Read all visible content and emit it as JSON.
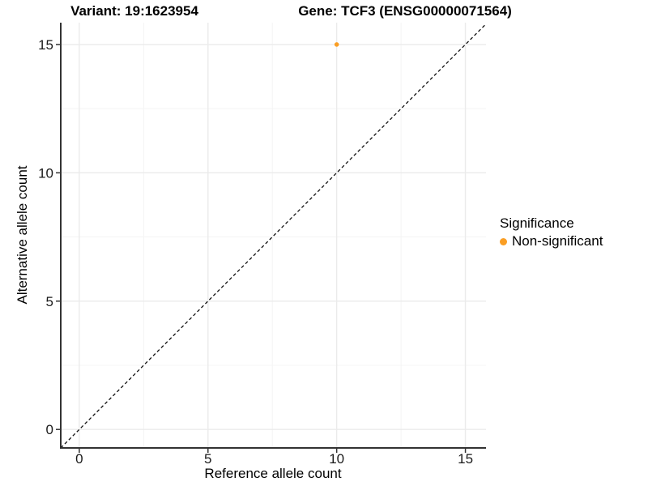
{
  "header": {
    "variant_title": "Variant: 19:1623954",
    "gene_title": "Gene: TCF3 (ENSG00000071564)"
  },
  "axes": {
    "x_label": "Reference allele count",
    "y_label": "Alternative allele count",
    "x_ticks": [
      0,
      5,
      10,
      15
    ],
    "y_ticks": [
      0,
      5,
      10,
      15
    ],
    "x_minor_ticks": [
      2.5,
      7.5,
      12.5
    ],
    "y_minor_ticks": [
      2.5,
      7.5,
      12.5
    ]
  },
  "legend": {
    "title": "Significance",
    "items": [
      {
        "label": "Non-significant",
        "color": "#FA9E24"
      }
    ]
  },
  "chart_data": {
    "type": "scatter",
    "title": "Variant: 19:1623954   Gene: TCF3 (ENSG00000071564)",
    "xlabel": "Reference allele count",
    "ylabel": "Alternative allele count",
    "xlim": [
      -0.72,
      15.8
    ],
    "ylim": [
      -0.72,
      15.85
    ],
    "grid": true,
    "legend_position": "right",
    "series": [
      {
        "name": "Non-significant",
        "color": "#FA9E24",
        "points": [
          {
            "x": 10,
            "y": 15
          }
        ]
      }
    ],
    "reference_line": {
      "type": "identity",
      "style": "dashed",
      "color": "#111111"
    }
  },
  "colors": {
    "point": "#FA9E24",
    "grid_major": "#EBEBEB",
    "grid_minor": "#F4F4F4",
    "axis_line": "#333333",
    "tick_mark": "#333333",
    "tick_text": "#1a1a1a",
    "background": "#ffffff"
  }
}
